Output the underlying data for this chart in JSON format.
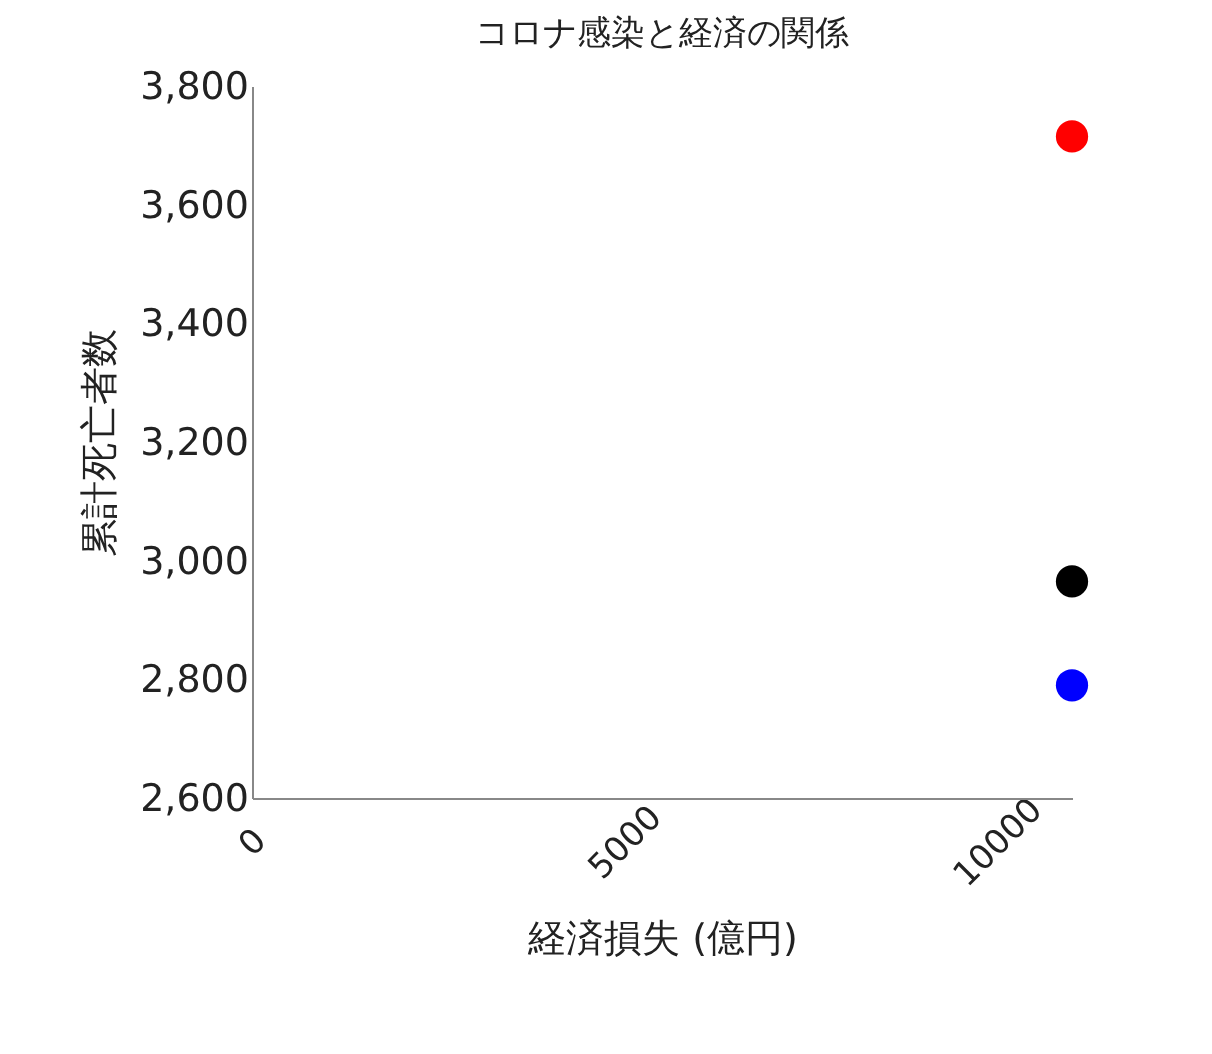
{
  "chart_data": {
    "type": "scatter",
    "title": "コロナ感染と経済の関係",
    "xlabel": "経済損失 (億円)",
    "ylabel": "累計死亡者数",
    "x": [
      11000
    ],
    "series": [
      {
        "color": "#ff0000",
        "values": [
          3715
        ]
      },
      {
        "color": "#000000",
        "values": [
          2965
        ]
      },
      {
        "color": "#0000ff",
        "values": [
          2790
        ]
      }
    ],
    "xlim": [
      0,
      11000
    ],
    "xticks": [
      0,
      5000,
      10000
    ],
    "ylim": [
      2600,
      3800
    ],
    "yticks": [
      {
        "value": 2600,
        "label": "2,600"
      },
      {
        "value": 2800,
        "label": "2,800"
      },
      {
        "value": 3000,
        "label": "3,000"
      },
      {
        "value": 3200,
        "label": "3,200"
      },
      {
        "value": 3400,
        "label": "3,400"
      },
      {
        "value": 3600,
        "label": "3,600"
      },
      {
        "value": 3800,
        "label": "3,800"
      }
    ],
    "marker": "circle",
    "grid": false,
    "legend": false
  }
}
